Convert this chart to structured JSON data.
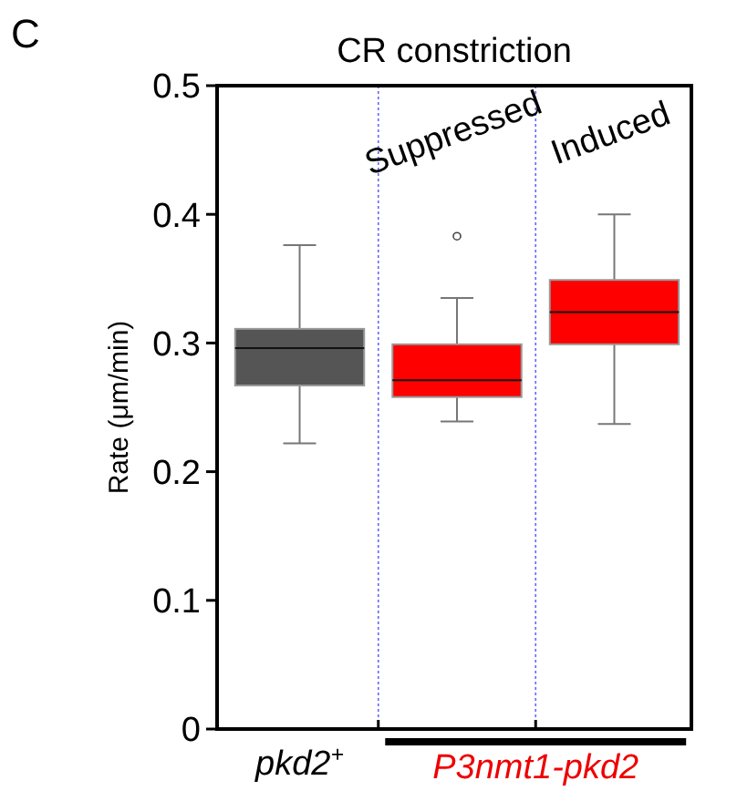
{
  "chart_data": {
    "type": "box",
    "title": "CR constriction",
    "ylabel": "Rate (μm/min)",
    "categories": [
      "pkd2$^{+}$",
      "Suppressed",
      "Induced"
    ],
    "colors": [
      "#555555",
      "#ff0000",
      "#ff0000"
    ],
    "boxes": [
      {
        "low": 0.222,
        "q1": 0.267,
        "median": 0.296,
        "q3": 0.311,
        "high": 0.376
      },
      {
        "low": 0.239,
        "q1": 0.258,
        "median": 0.271,
        "q3": 0.299,
        "high": 0.335,
        "outliers": [
          0.383
        ]
      },
      {
        "low": 0.237,
        "q1": 0.299,
        "median": 0.324,
        "q3": 0.349,
        "high": 0.4
      }
    ],
    "ylim": [
      0,
      0.5
    ],
    "yticks": [
      0,
      0.1,
      0.2,
      0.3,
      0.4,
      0.5
    ],
    "grid": false,
    "annotations": [
      "C",
      "P3nmt1-pkd2"
    ]
  }
}
